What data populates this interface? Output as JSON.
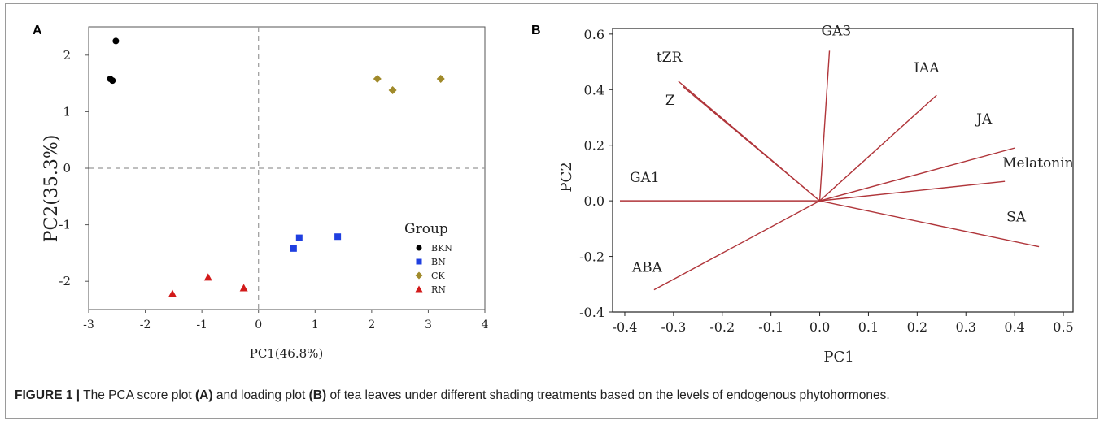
{
  "panel_a": {
    "label": "A",
    "chart_data": {
      "type": "scatter",
      "xlabel": "PC1(46.8%)",
      "ylabel": "PC2(35.3%)",
      "xlim": [
        -3,
        4
      ],
      "ylim": [
        -2.5,
        2.5
      ],
      "xticks": [
        "-3",
        "-2",
        "-1",
        "0",
        "1",
        "2",
        "3",
        "4"
      ],
      "yticks": [
        "2",
        "1",
        "0",
        "-1",
        "-2"
      ],
      "zero_lines": "dashed",
      "legend_title": "Group",
      "legend_position": "bottom-right",
      "series": [
        {
          "name": "BKN",
          "marker": "circle",
          "color": "#000000",
          "points": [
            [
              -2.52,
              2.25
            ],
            [
              -2.62,
              1.58
            ],
            [
              -2.58,
              1.55
            ]
          ]
        },
        {
          "name": "BN",
          "marker": "square",
          "color": "#1f3fe0",
          "points": [
            [
              0.72,
              -1.23
            ],
            [
              1.4,
              -1.21
            ],
            [
              0.62,
              -1.42
            ]
          ]
        },
        {
          "name": "CK",
          "marker": "diamond",
          "color": "#a08a2a",
          "points": [
            [
              2.1,
              1.58
            ],
            [
              2.37,
              1.38
            ],
            [
              3.22,
              1.58
            ]
          ]
        },
        {
          "name": "RN",
          "marker": "triangle",
          "color": "#d21a1a",
          "points": [
            [
              -0.89,
              -1.93
            ],
            [
              -0.26,
              -2.12
            ],
            [
              -1.52,
              -2.22
            ]
          ]
        }
      ]
    }
  },
  "panel_b": {
    "label": "B",
    "chart_data": {
      "type": "loading-plot",
      "xlabel": "PC1",
      "ylabel": "PC2",
      "xlim": [
        -0.425,
        0.52
      ],
      "ylim": [
        -0.4,
        0.62
      ],
      "xticks": [
        "-0.4",
        "-0.3",
        "-0.2",
        "-0.1",
        "0.0",
        "0.1",
        "0.2",
        "0.3",
        "0.4",
        "0.5"
      ],
      "yticks": [
        "0.6",
        "0.4",
        "0.2",
        "0.0",
        "-0.2",
        "-0.4"
      ],
      "line_color": "#b0353a",
      "vectors": [
        {
          "name": "GA3",
          "x": 0.02,
          "y": 0.54
        },
        {
          "name": "IAA",
          "x": 0.24,
          "y": 0.38
        },
        {
          "name": "tZR",
          "x": -0.29,
          "y": 0.43
        },
        {
          "name": "Z",
          "x": -0.28,
          "y": 0.41
        },
        {
          "name": "JA",
          "x": 0.4,
          "y": 0.19
        },
        {
          "name": "Melatonin",
          "x": 0.38,
          "y": 0.07
        },
        {
          "name": "GA1",
          "x": -0.41,
          "y": 0.0
        },
        {
          "name": "SA",
          "x": 0.45,
          "y": -0.165
        },
        {
          "name": "ABA",
          "x": -0.34,
          "y": -0.32
        }
      ]
    }
  },
  "caption": {
    "prefix": "FIGURE 1 |",
    "part1": " The PCA score plot ",
    "ref_a": "(A)",
    "part2": " and loading plot ",
    "ref_b": "(B)",
    "part3": " of tea leaves under different shading treatments based on the levels of endogenous phytohormones."
  }
}
